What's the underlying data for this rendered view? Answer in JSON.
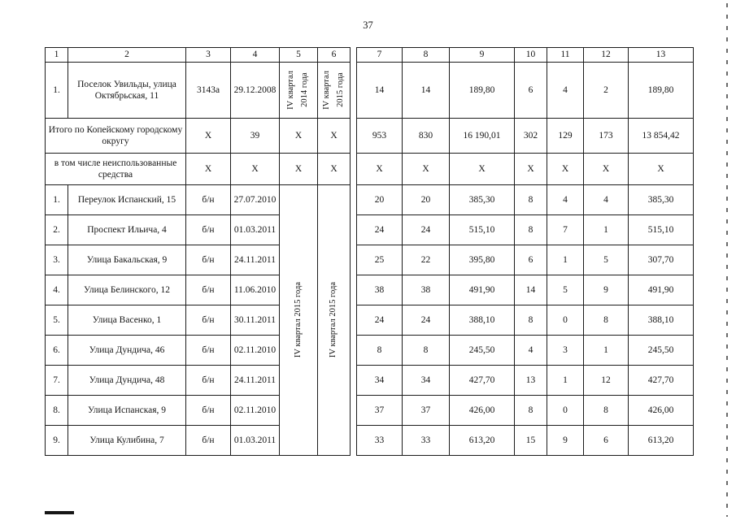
{
  "page_number": "37",
  "colors": {
    "paper": "#ffffff",
    "ink": "#1c1c1c"
  },
  "table": {
    "header_numbers": [
      "1",
      "2",
      "3",
      "4",
      "5",
      "6",
      "7",
      "8",
      "9",
      "10",
      "11",
      "12",
      "13"
    ],
    "section1_row": {
      "cells_left": [
        "1.",
        "Поселок Увильды, улица Октябрьская, 11",
        "3143а",
        "29.12.2008"
      ],
      "vert": [
        "IV квартал\n2014 года",
        "IV квартал\n2015 года"
      ],
      "cells_right": [
        "14",
        "14",
        "189,80",
        "6",
        "4",
        "2",
        "189,80"
      ]
    },
    "totals": {
      "label": "Итого по Копейскому городскому округу",
      "cells": [
        "X",
        "39",
        "X",
        "X",
        "953",
        "830",
        "16 190,01",
        "302",
        "129",
        "173",
        "13 854,42"
      ]
    },
    "unused": {
      "label": "в том числе неиспользованные средства",
      "cells": [
        "X",
        "X",
        "X",
        "X",
        "X",
        "X",
        "X",
        "X",
        "X",
        "X",
        "X"
      ]
    },
    "section2": {
      "vert": [
        "IV квартал 2015 года",
        "IV квартал 2015 года"
      ],
      "rows": [
        {
          "left": [
            "1.",
            "Переулок Испанский, 15",
            "б/н",
            "27.07.2010"
          ],
          "right": [
            "20",
            "20",
            "385,30",
            "8",
            "4",
            "4",
            "385,30"
          ]
        },
        {
          "left": [
            "2.",
            "Проспект Ильича, 4",
            "б/н",
            "01.03.2011"
          ],
          "right": [
            "24",
            "24",
            "515,10",
            "8",
            "7",
            "1",
            "515,10"
          ]
        },
        {
          "left": [
            "3.",
            "Улица Бакальская, 9",
            "б/н",
            "24.11.2011"
          ],
          "right": [
            "25",
            "22",
            "395,80",
            "6",
            "1",
            "5",
            "307,70"
          ]
        },
        {
          "left": [
            "4.",
            "Улица  Белинского, 12",
            "б/н",
            "11.06.2010"
          ],
          "right": [
            "38",
            "38",
            "491,90",
            "14",
            "5",
            "9",
            "491,90"
          ]
        },
        {
          "left": [
            "5.",
            "Улица  Васенко, 1",
            "б/н",
            "30.11.2011"
          ],
          "right": [
            "24",
            "24",
            "388,10",
            "8",
            "0",
            "8",
            "388,10"
          ]
        },
        {
          "left": [
            "6.",
            "Улица  Дундича, 46",
            "б/н",
            "02.11.2010"
          ],
          "right": [
            "8",
            "8",
            "245,50",
            "4",
            "3",
            "1",
            "245,50"
          ]
        },
        {
          "left": [
            "7.",
            "Улица  Дундича, 48",
            "б/н",
            "24.11.2011"
          ],
          "right": [
            "34",
            "34",
            "427,70",
            "13",
            "1",
            "12",
            "427,70"
          ]
        },
        {
          "left": [
            "8.",
            "Улица Испанская, 9",
            "б/н",
            "02.11.2010"
          ],
          "right": [
            "37",
            "37",
            "426,00",
            "8",
            "0",
            "8",
            "426,00"
          ]
        },
        {
          "left": [
            "9.",
            "Улица Кулибина, 7",
            "б/н",
            "01.03.2011"
          ],
          "right": [
            "33",
            "33",
            "613,20",
            "15",
            "9",
            "6",
            "613,20"
          ]
        }
      ]
    }
  }
}
